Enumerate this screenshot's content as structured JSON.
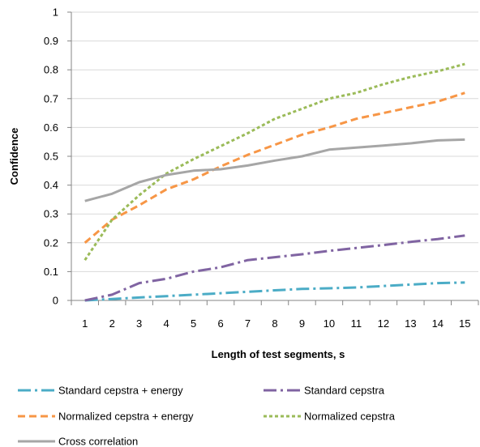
{
  "chart_data": {
    "type": "line",
    "xlabel": "Length of test segments, s",
    "ylabel": "Confidence",
    "x": [
      1,
      2,
      3,
      4,
      5,
      6,
      7,
      8,
      9,
      10,
      11,
      12,
      13,
      14,
      15
    ],
    "xlim": [
      1,
      15
    ],
    "ylim": [
      0,
      1
    ],
    "yticks": [
      "0",
      "0.1",
      "0.2",
      "0.3",
      "0.4",
      "0.5",
      "0.6",
      "0.7",
      "0.8",
      "0.9",
      "1"
    ],
    "xticks": [
      "1",
      "2",
      "3",
      "4",
      "5",
      "6",
      "7",
      "8",
      "9",
      "10",
      "11",
      "12",
      "13",
      "14",
      "15"
    ],
    "grid": "horizontal",
    "legend_position": "bottom",
    "series": [
      {
        "name": "Standard cepstra + energy",
        "color": "#4BACC6",
        "style": "dash-dot",
        "values": [
          0.0,
          0.005,
          0.01,
          0.015,
          0.02,
          0.025,
          0.03,
          0.035,
          0.04,
          0.042,
          0.045,
          0.05,
          0.055,
          0.06,
          0.062
        ]
      },
      {
        "name": "Standard cepstra",
        "color": "#8064A2",
        "style": "dash-dot",
        "values": [
          0.0,
          0.02,
          0.06,
          0.075,
          0.1,
          0.115,
          0.14,
          0.15,
          0.16,
          0.172,
          0.182,
          0.192,
          0.203,
          0.213,
          0.225
        ]
      },
      {
        "name": "Normalized cepstra + energy",
        "color": "#F79646",
        "style": "dash",
        "values": [
          0.2,
          0.28,
          0.33,
          0.385,
          0.42,
          0.465,
          0.505,
          0.54,
          0.575,
          0.6,
          0.63,
          0.65,
          0.67,
          0.69,
          0.72
        ]
      },
      {
        "name": "Normalized cepstra",
        "color": "#9BBB59",
        "style": "short-dash",
        "values": [
          0.14,
          0.28,
          0.365,
          0.44,
          0.49,
          0.535,
          0.58,
          0.63,
          0.665,
          0.7,
          0.72,
          0.75,
          0.775,
          0.795,
          0.82
        ]
      },
      {
        "name": "Cross correlation",
        "color": "#A6A6A6",
        "style": "solid",
        "values": [
          0.345,
          0.37,
          0.41,
          0.435,
          0.45,
          0.455,
          0.468,
          0.485,
          0.5,
          0.523,
          0.53,
          0.537,
          0.545,
          0.555,
          0.558
        ]
      }
    ]
  }
}
